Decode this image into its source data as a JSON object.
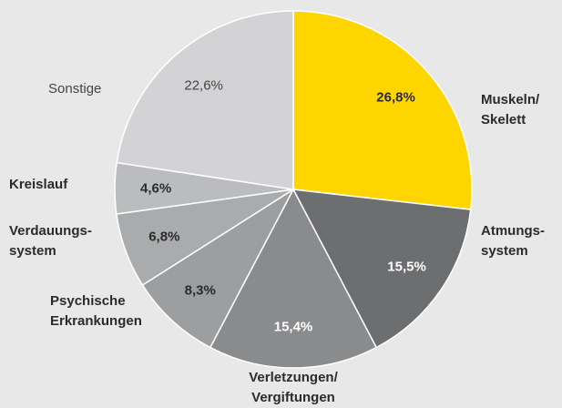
{
  "chart_data": {
    "type": "pie",
    "categories": [
      "Muskeln/\nSkelett",
      "Atmungs-\nsystem",
      "Verletzungen/\nVergiftungen",
      "Psychische\nErkrankungen",
      "Verdauungs-\nsystem",
      "Kreislauf",
      "Sonstige"
    ],
    "values": [
      26.8,
      15.5,
      15.4,
      8.3,
      6.8,
      4.6,
      22.6
    ],
    "value_labels": [
      "26,8%",
      "15,5%",
      "15,4%",
      "8,3%",
      "6,8%",
      "4,6%",
      "22,6%"
    ],
    "colors": [
      "#ffd500",
      "#6d6e70",
      "#8a8b8d",
      "#9d9ea0",
      "#aaabad",
      "#bbbcbe",
      "#d3d3d5"
    ]
  }
}
